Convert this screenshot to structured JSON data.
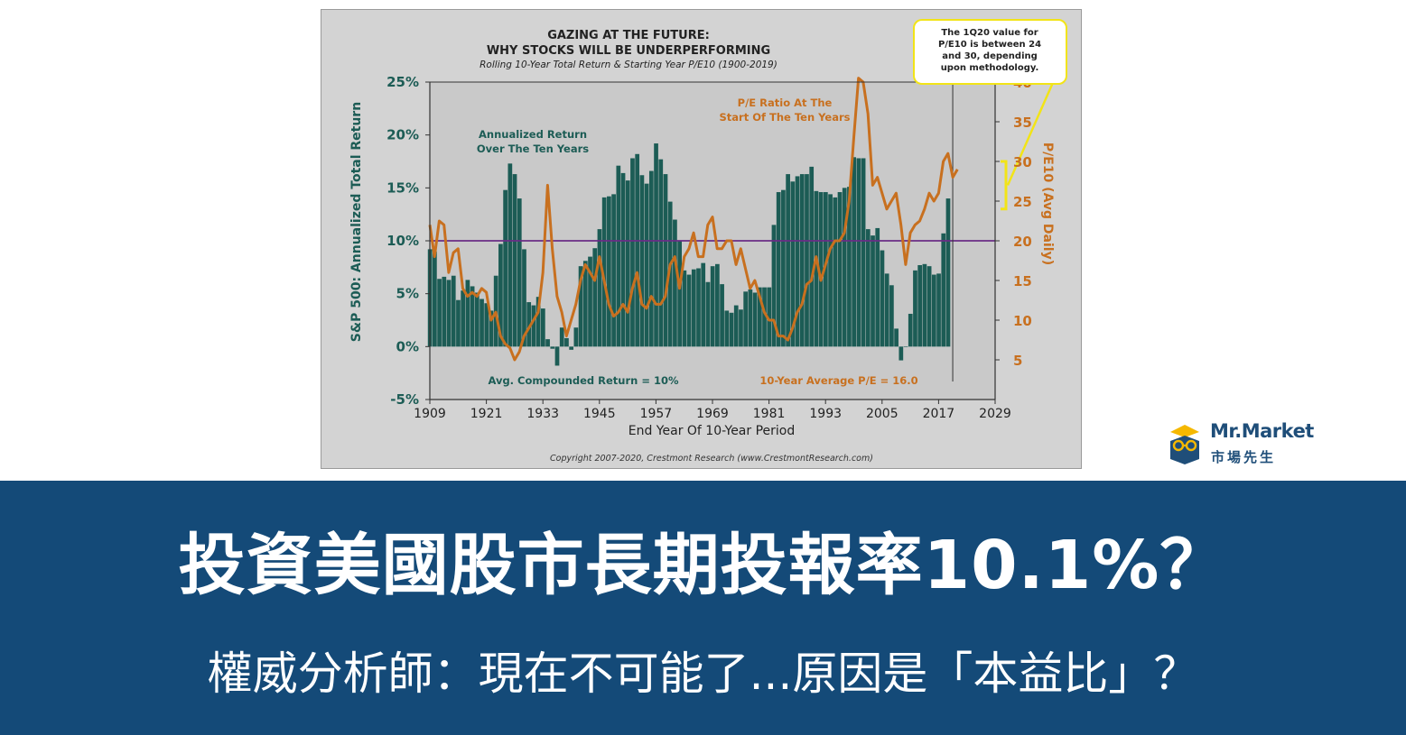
{
  "chart_data": {
    "type": "bar",
    "title": "GAZING AT THE FUTURE:",
    "title2": "WHY STOCKS WILL BE UNDERPERFORMING",
    "subtitle": "Rolling 10-Year Total Return & Starting Year P/E10 (1900-2019)",
    "xlabel": "End Year Of 10-Year Period",
    "ylabel_left": "S&P 500: Annualized Total Return",
    "ylabel_right": "P/E10 (Avg Daily)",
    "xlim": [
      1909,
      2029
    ],
    "ylim_left": [
      -5,
      25
    ],
    "ylim_right": [
      0,
      40
    ],
    "x_ticks": [
      "1909",
      "1921",
      "1933",
      "1945",
      "1957",
      "1969",
      "1981",
      "1993",
      "2005",
      "2017",
      "2029"
    ],
    "y_ticks_left": [
      "25%",
      "20%",
      "15%",
      "10%",
      "5%",
      "0%",
      "-5%"
    ],
    "y_ticks_right": [
      "40",
      "35",
      "30",
      "25",
      "20",
      "15",
      "10",
      "5"
    ],
    "grid": false,
    "series": [
      {
        "name": "Annualized Return Over The Ten Years",
        "type": "bar",
        "axis": "left",
        "color": "#1c5c55",
        "x": [
          1909,
          1910,
          1911,
          1912,
          1913,
          1914,
          1915,
          1916,
          1917,
          1918,
          1919,
          1920,
          1921,
          1922,
          1923,
          1924,
          1925,
          1926,
          1927,
          1928,
          1929,
          1930,
          1931,
          1932,
          1933,
          1934,
          1935,
          1936,
          1937,
          1938,
          1939,
          1940,
          1941,
          1942,
          1943,
          1944,
          1945,
          1946,
          1947,
          1948,
          1949,
          1950,
          1951,
          1952,
          1953,
          1954,
          1955,
          1956,
          1957,
          1958,
          1959,
          1960,
          1961,
          1962,
          1963,
          1964,
          1965,
          1966,
          1967,
          1968,
          1969,
          1970,
          1971,
          1972,
          1973,
          1974,
          1975,
          1976,
          1977,
          1978,
          1979,
          1980,
          1981,
          1982,
          1983,
          1984,
          1985,
          1986,
          1987,
          1988,
          1989,
          1990,
          1991,
          1992,
          1993,
          1994,
          1995,
          1996,
          1997,
          1998,
          1999,
          2000,
          2001,
          2002,
          2003,
          2004,
          2005,
          2006,
          2007,
          2008,
          2009,
          2010,
          2011,
          2012,
          2013,
          2014,
          2015,
          2016,
          2017,
          2018,
          2019
        ],
        "values": [
          9.2,
          9.0,
          6.4,
          6.6,
          6.3,
          6.7,
          4.4,
          5.3,
          6.3,
          5.7,
          5.1,
          4.5,
          4.1,
          3.4,
          6.7,
          9.7,
          14.8,
          17.3,
          16.3,
          14.0,
          9.2,
          4.2,
          3.9,
          4.7,
          3.6,
          0.7,
          -0.2,
          -1.8,
          1.8,
          0.8,
          -0.3,
          1.8,
          7.6,
          8.1,
          8.5,
          9.3,
          11.1,
          14.1,
          14.2,
          14.4,
          17.1,
          16.4,
          15.7,
          17.8,
          18.2,
          16.2,
          15.4,
          16.6,
          19.2,
          17.7,
          16.3,
          13.7,
          12.0,
          10.0,
          7.2,
          6.8,
          7.3,
          7.4,
          7.9,
          6.1,
          7.6,
          7.8,
          5.9,
          3.4,
          3.2,
          3.9,
          3.5,
          5.2,
          5.4,
          5.1,
          5.6,
          5.6,
          5.6,
          11.5,
          14.6,
          14.8,
          16.3,
          15.6,
          16.1,
          16.3,
          16.3,
          17.0,
          14.7,
          14.6,
          14.6,
          14.4,
          14.1,
          14.6,
          15.0,
          15.1,
          17.9,
          17.8,
          17.8,
          11.1,
          10.5,
          11.2,
          9.1,
          6.9,
          5.8,
          1.7,
          -1.3,
          0.0,
          3.1,
          7.2,
          7.7,
          7.8,
          7.6,
          6.8,
          6.9,
          10.7,
          14.0
        ]
      },
      {
        "name": "P/E Ratio At The Start Of The Ten Years",
        "type": "line",
        "axis": "right",
        "color": "#c8701f",
        "x": [
          1909,
          1910,
          1911,
          1912,
          1913,
          1914,
          1915,
          1916,
          1917,
          1918,
          1919,
          1920,
          1921,
          1922,
          1923,
          1924,
          1925,
          1926,
          1927,
          1928,
          1929,
          1930,
          1931,
          1932,
          1933,
          1934,
          1935,
          1936,
          1937,
          1938,
          1939,
          1940,
          1941,
          1942,
          1943,
          1944,
          1945,
          1946,
          1947,
          1948,
          1949,
          1950,
          1951,
          1952,
          1953,
          1954,
          1955,
          1956,
          1957,
          1958,
          1959,
          1960,
          1961,
          1962,
          1963,
          1964,
          1965,
          1966,
          1967,
          1968,
          1969,
          1970,
          1971,
          1972,
          1973,
          1974,
          1975,
          1976,
          1977,
          1978,
          1979,
          1980,
          1981,
          1982,
          1983,
          1984,
          1985,
          1986,
          1987,
          1988,
          1989,
          1990,
          1991,
          1992,
          1993,
          1994,
          1995,
          1996,
          1997,
          1998,
          1999,
          2000,
          2001,
          2002,
          2003,
          2004,
          2005,
          2006,
          2007,
          2008,
          2009,
          2010,
          2011,
          2012,
          2013,
          2014,
          2015,
          2016,
          2017,
          2018,
          2019,
          2020,
          2021
        ],
        "values": [
          22.0,
          18.0,
          22.5,
          22.0,
          16.0,
          18.5,
          19.0,
          14.0,
          13.0,
          13.5,
          13.0,
          14.0,
          13.5,
          10.0,
          11.0,
          8.0,
          7.0,
          6.5,
          5.0,
          6.0,
          8.0,
          9.0,
          10.0,
          11.0,
          16.0,
          27.0,
          19.0,
          13.0,
          11.0,
          8.0,
          10.0,
          12.0,
          15.0,
          17.0,
          16.0,
          15.0,
          18.0,
          15.0,
          12.0,
          10.5,
          11.0,
          12.0,
          11.0,
          14.0,
          16.0,
          12.0,
          11.5,
          13.0,
          12.0,
          12.0,
          13.0,
          17.0,
          18.0,
          14.0,
          18.0,
          19.0,
          21.0,
          18.0,
          18.0,
          22.0,
          23.0,
          19.0,
          19.0,
          20.0,
          20.0,
          17.0,
          19.0,
          16.5,
          14.0,
          15.0,
          13.0,
          11.0,
          10.0,
          10.0,
          8.0,
          8.0,
          7.5,
          9.0,
          11.0,
          12.0,
          14.5,
          15.0,
          18.0,
          15.0,
          17.0,
          19.0,
          20.0,
          20.0,
          21.0,
          25.0,
          33.0,
          42.5,
          40.0,
          36.0,
          27.0,
          28.0,
          26.0,
          24.0,
          25.0,
          26.0,
          22.0,
          17.0,
          21.0,
          22.0,
          22.5,
          24.0,
          26.0,
          25.0,
          26.0,
          30.0,
          31.0,
          28.0,
          29.0
        ]
      }
    ],
    "reference_lines": [
      {
        "axis": "left",
        "value": 10,
        "color": "#6a2c86"
      }
    ],
    "annotations": {
      "return_label_line1": "Annualized Return",
      "return_label_line2": "Over The Ten Years",
      "pe_label_line1": "P/E Ratio At The",
      "pe_label_line2": "Start Of The Ten Years",
      "avg_return": "Avg. Compounded Return = 10%",
      "avg_pe": "10-Year Average P/E = 16.0",
      "callout_line1": "The 1Q20 value for",
      "callout_line2": "P/E10 is between 24",
      "callout_line3": "and 30, depending",
      "callout_line4": "upon methodology.",
      "callout_range": [
        24,
        30
      ],
      "copyright": "Copyright 2007-2020, Crestmont Research (www.CrestmontResearch.com)"
    },
    "colors": {
      "bar": "#1c5c55",
      "pe_line": "#c8701f",
      "ref_line": "#6a2c86",
      "callout": "#f2e417",
      "title": "#222222",
      "plot_bg": "#c9c9c9"
    }
  },
  "brand": {
    "name": "Mr.Market",
    "subtitle": "市場先生",
    "logo_icon": "owl-glasses-logo-icon"
  },
  "banner": {
    "title": "投資美國股市長期投報率10.1%？",
    "subtitle": "權威分析師：現在不可能了...原因是「本益比」？",
    "background": "#144a78"
  }
}
